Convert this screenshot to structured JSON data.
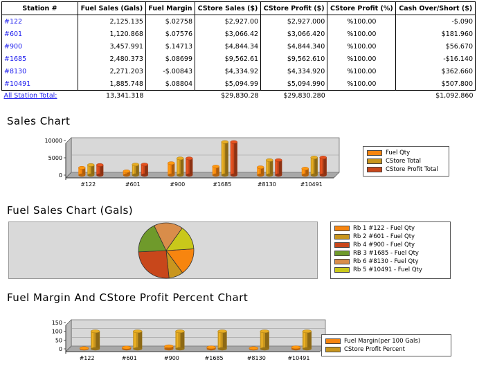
{
  "table": {
    "headers": [
      "Station #",
      "Fuel Sales (Gals)",
      "Fuel Margin",
      "CStore Sales ($)",
      "CStore Profit ($)",
      "CStore Profit (%)",
      "Cash Over/Short ($)"
    ],
    "rows": [
      {
        "station": "#122",
        "fuel_sales": "2,125.135",
        "fuel_margin": "$.02758",
        "cstore_sales": "$2,927.00",
        "cstore_profit": "$2,927.000",
        "profit_pct": "%100.00",
        "cash_os": "-$.090"
      },
      {
        "station": "#601",
        "fuel_sales": "1,120.868",
        "fuel_margin": "$.07576",
        "cstore_sales": "$3,066.42",
        "cstore_profit": "$3,066.420",
        "profit_pct": "%100.00",
        "cash_os": "$181.960"
      },
      {
        "station": "#900",
        "fuel_sales": "3,457.991",
        "fuel_margin": "$.14713",
        "cstore_sales": "$4,844.34",
        "cstore_profit": "$4,844.340",
        "profit_pct": "%100.00",
        "cash_os": "$56.670"
      },
      {
        "station": "#1685",
        "fuel_sales": "2,480.373",
        "fuel_margin": "$.08699",
        "cstore_sales": "$9,562.61",
        "cstore_profit": "$9,562.610",
        "profit_pct": "%100.00",
        "cash_os": "-$16.140"
      },
      {
        "station": "#8130",
        "fuel_sales": "2,271.203",
        "fuel_margin": "-$.00843",
        "cstore_sales": "$4,334.92",
        "cstore_profit": "$4,334.920",
        "profit_pct": "%100.00",
        "cash_os": "$362.660"
      },
      {
        "station": "#10491",
        "fuel_sales": "1,885.748",
        "fuel_margin": "$.08804",
        "cstore_sales": "$5,094.99",
        "cstore_profit": "$5,094.990",
        "profit_pct": "%100.00",
        "cash_os": "$507.800"
      }
    ],
    "total": {
      "label": "All Station Total:",
      "fuel_sales": "13,341.318",
      "fuel_margin": "",
      "cstore_sales": "$29,830.28",
      "cstore_profit": "$29,830.280",
      "profit_pct": "",
      "cash_os": "$1,092.860"
    }
  },
  "colors": {
    "orange": "#f7850f",
    "gold": "#c9961e",
    "rust": "#c8471b",
    "green": "#6f9a2b",
    "tan": "#d98d4a",
    "yellow": "#c9c81a",
    "wall": "#d8d8d8",
    "floor": "#a8a8a8"
  },
  "sales_chart": {
    "title": "Sales Chart",
    "legend": [
      "Fuel Qty",
      "CStore Total",
      "CStore Profit Total"
    ]
  },
  "fuel_chart": {
    "title": "Fuel Sales Chart (Gals)",
    "legend": [
      "Rb 1 #122 - Fuel Qty",
      "Rb 2 #601 - Fuel Qty",
      "Rb 4 #900 - Fuel Qty",
      "RB 3 #1685 - Fuel Qty",
      "Rb 6 #8130 - Fuel Qty",
      "Rb 5 #10491 - Fuel Qty"
    ]
  },
  "margin_chart": {
    "title": "Fuel Margin And CStore Profit Percent Chart",
    "legend": [
      "Fuel Margin(per 100 Gals)",
      "CStore Profit Percent"
    ]
  },
  "chart_data": [
    {
      "type": "bar",
      "title": "Sales Chart",
      "categories": [
        "#122",
        "#601",
        "#900",
        "#1685",
        "#8130",
        "#10491"
      ],
      "yticks": [
        "10000",
        "5000",
        "0"
      ],
      "ylim": [
        0,
        10000
      ],
      "series": [
        {
          "name": "Fuel Qty",
          "values": [
            2125.135,
            1120.868,
            3457.991,
            2480.373,
            2271.203,
            1885.748
          ]
        },
        {
          "name": "CStore Total",
          "values": [
            2927.0,
            3066.42,
            4844.34,
            9562.61,
            4334.92,
            5094.99
          ]
        },
        {
          "name": "CStore Profit Total",
          "values": [
            2927.0,
            3066.42,
            4844.34,
            9562.61,
            4334.92,
            5094.99
          ]
        }
      ],
      "legend_position": "right"
    },
    {
      "type": "pie",
      "title": "Fuel Sales Chart (Gals)",
      "labels": [
        "Rb 1 #122 - Fuel Qty",
        "Rb 2 #601 - Fuel Qty",
        "Rb 4 #900 - Fuel Qty",
        "RB 3 #1685 - Fuel Qty",
        "Rb 6 #8130 - Fuel Qty",
        "Rb 5 #10491 - Fuel Qty"
      ],
      "values": [
        2125.135,
        1120.868,
        3457.991,
        2480.373,
        2271.203,
        1885.748
      ],
      "legend_position": "right"
    },
    {
      "type": "bar",
      "title": "Fuel Margin And CStore Profit Percent Chart",
      "categories": [
        "#122",
        "#601",
        "#900",
        "#1685",
        "#8130",
        "#10491"
      ],
      "yticks": [
        "150",
        "100",
        "50",
        "0"
      ],
      "ylim": [
        0,
        150
      ],
      "series": [
        {
          "name": "Fuel Margin(per 100 Gals)",
          "values": [
            2.758,
            7.576,
            14.713,
            8.699,
            -0.843,
            8.804
          ]
        },
        {
          "name": "CStore Profit Percent",
          "values": [
            100,
            100,
            100,
            100,
            100,
            100
          ]
        }
      ],
      "legend_position": "right"
    }
  ]
}
